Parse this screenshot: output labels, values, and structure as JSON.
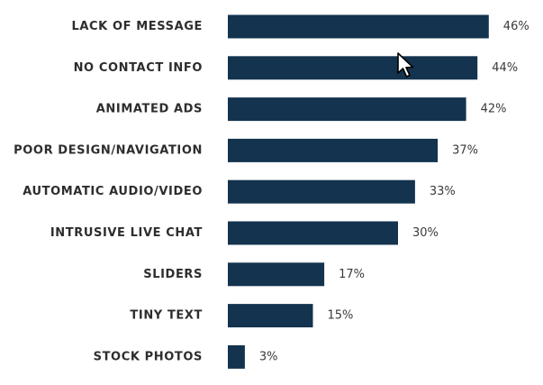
{
  "chart_data": {
    "type": "bar",
    "orientation": "horizontal",
    "categories": [
      "LACK OF MESSAGE",
      "NO CONTACT INFO",
      "ANIMATED ADS",
      "POOR DESIGN/NAVIGATION",
      "AUTOMATIC AUDIO/VIDEO",
      "INTRUSIVE LIVE CHAT",
      "SLIDERS",
      "TINY TEXT",
      "STOCK PHOTOS"
    ],
    "values": [
      46,
      44,
      42,
      37,
      33,
      30,
      17,
      15,
      3
    ],
    "value_labels": [
      "46%",
      "44%",
      "42%",
      "37%",
      "33%",
      "30%",
      "17%",
      "15%",
      "3%"
    ],
    "xlim": [
      0,
      50
    ],
    "grid": false,
    "bar_color": "#13334e"
  },
  "cursor": {
    "icon": "mouse-pointer-icon"
  }
}
